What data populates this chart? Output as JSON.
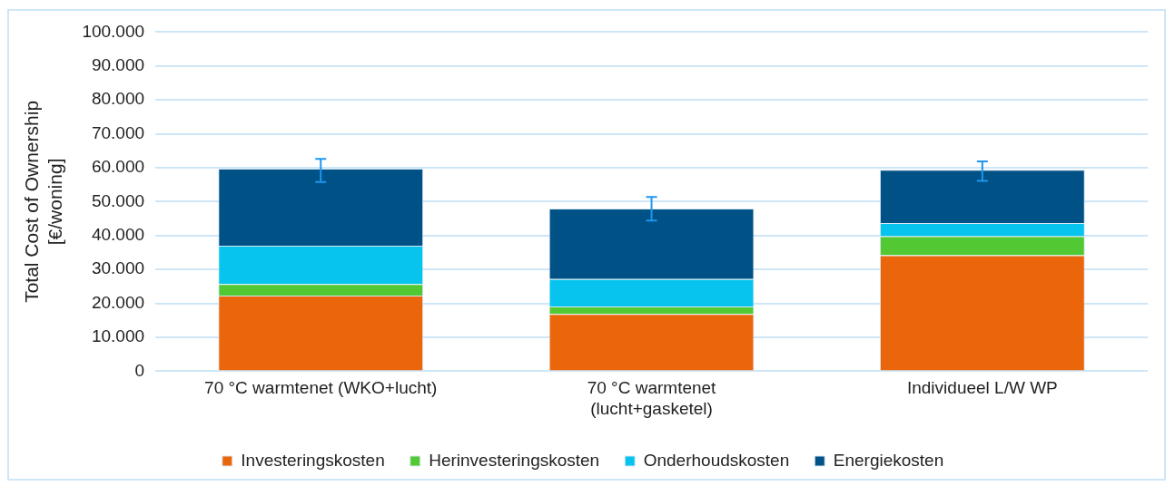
{
  "chart_data": {
    "type": "bar",
    "stacked": true,
    "ylabel": "Total Cost of Ownership [€/woning]",
    "categories": [
      "70 °C warmtenet (WKO+lucht)",
      "70 °C warmtenet (lucht+gasketel)",
      "Individueel L/W WP"
    ],
    "series": [
      {
        "name": "Investeringskosten",
        "color": "#eb660b",
        "values": [
          22300,
          16900,
          34200
        ]
      },
      {
        "name": "Herinvesteringskosten",
        "color": "#52c832",
        "values": [
          3400,
          2200,
          5600
        ]
      },
      {
        "name": "Onderhoudskosten",
        "color": "#06c4ee",
        "values": [
          11300,
          8100,
          3900
        ]
      },
      {
        "name": "Energiekosten",
        "color": "#005186",
        "values": [
          22700,
          20800,
          15700
        ],
        "errors": [
          [
            55800,
            62600
          ],
          [
            44400,
            51400
          ],
          [
            56100,
            61900
          ]
        ]
      }
    ],
    "ylim": [
      0,
      100000
    ],
    "yticks": [
      {
        "value": 0,
        "label": "0"
      },
      {
        "value": 10000,
        "label": "10.000"
      },
      {
        "value": 20000,
        "label": "20.000"
      },
      {
        "value": 30000,
        "label": "30.000"
      },
      {
        "value": 40000,
        "label": "40.000"
      },
      {
        "value": 50000,
        "label": "50.000"
      },
      {
        "value": 60000,
        "label": "60.000"
      },
      {
        "value": 70000,
        "label": "70.000"
      },
      {
        "value": 80000,
        "label": "80.000"
      },
      {
        "value": 90000,
        "label": "90.000"
      },
      {
        "value": 100000,
        "label": "100.000"
      }
    ],
    "grid": "y",
    "legend": "bottom"
  }
}
